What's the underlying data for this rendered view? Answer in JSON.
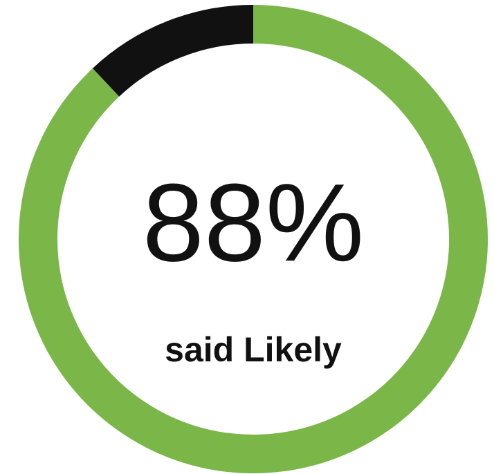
{
  "chart_data": {
    "type": "donut",
    "values": [
      88,
      12
    ],
    "colors": [
      "#7ab648",
      "#111111"
    ],
    "value_labels": [
      "88%",
      null
    ],
    "caption": "said Likely"
  }
}
